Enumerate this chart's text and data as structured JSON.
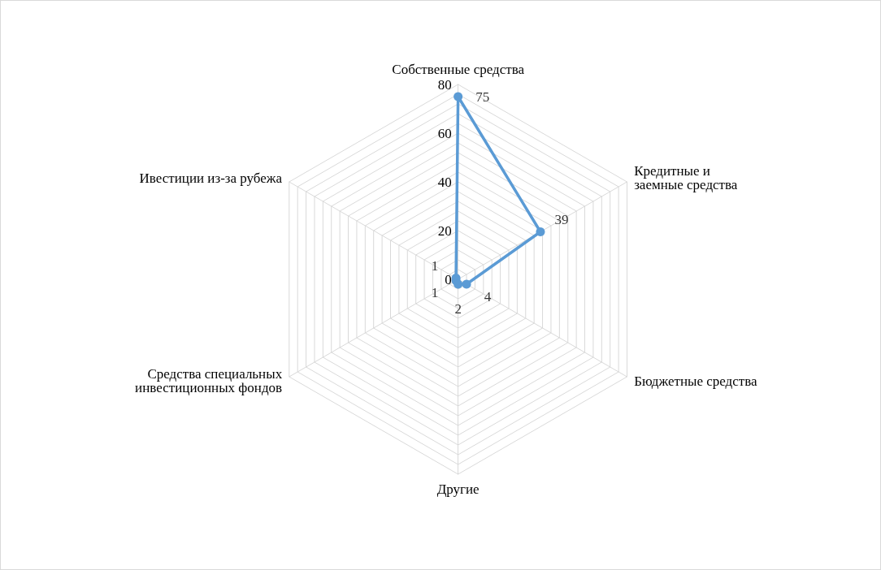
{
  "chart_data": {
    "type": "radar",
    "categories": [
      "Собственные средства",
      "Кредитные и заемные средства",
      "Бюджетные средства",
      "Другие",
      "Средства специальных инвестиционных фондов",
      "Ивестиции из-за рубежа"
    ],
    "series": [
      {
        "color": "#5b9bd5",
        "values": [
          75,
          39,
          4,
          2,
          1,
          1
        ]
      }
    ],
    "ylim": [
      0,
      80
    ],
    "yticks": [
      0,
      20,
      40,
      60,
      80
    ],
    "data_labels": true,
    "marker": "circle",
    "legend": false
  }
}
